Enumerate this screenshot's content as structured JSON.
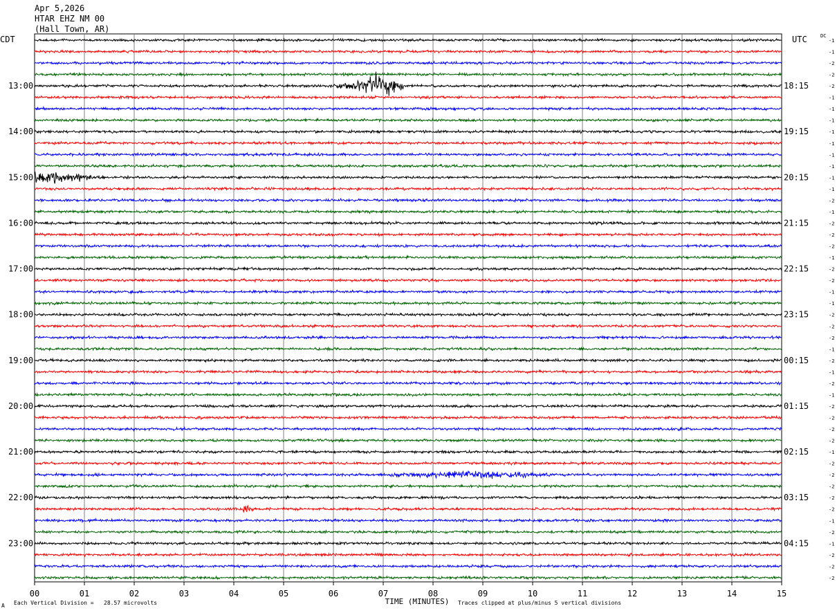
{
  "header": {
    "date": "Apr 5,2026",
    "station": "HTAR EHZ NM 00",
    "location": "(Hall Town, AR)"
  },
  "left_timezone": "CDT",
  "right_timezone": "UTC",
  "dc_label": "DC",
  "footer": {
    "scale_note": "Each Vertical Division =   28.57 microvolts",
    "clip_note": "Traces clipped at plus/minus 5 vertical divisions",
    "corner_mark": "A"
  },
  "colors": {
    "trace_cycle": [
      "#000000",
      "#ff0000",
      "#0000ff",
      "#006400"
    ],
    "grid": "#808080",
    "background": "#ffffff"
  },
  "chart_data": {
    "type": "line",
    "xlabel": "TIME (MINUTES)",
    "xlim": [
      0,
      15
    ],
    "x_ticks": [
      "00",
      "01",
      "02",
      "03",
      "04",
      "05",
      "06",
      "07",
      "08",
      "09",
      "10",
      "11",
      "12",
      "13",
      "14",
      "15"
    ],
    "trace_count": 48,
    "minutes_per_trace": 15,
    "left_hour_labels": [
      {
        "row": 4,
        "text": "13:00"
      },
      {
        "row": 8,
        "text": "14:00"
      },
      {
        "row": 12,
        "text": "15:00"
      },
      {
        "row": 16,
        "text": "16:00"
      },
      {
        "row": 20,
        "text": "17:00"
      },
      {
        "row": 24,
        "text": "18:00"
      },
      {
        "row": 28,
        "text": "19:00"
      },
      {
        "row": 32,
        "text": "20:00"
      },
      {
        "row": 36,
        "text": "21:00"
      },
      {
        "row": 40,
        "text": "22:00"
      },
      {
        "row": 44,
        "text": "23:00"
      }
    ],
    "right_hour_labels": [
      {
        "row": 4,
        "text": "18:15"
      },
      {
        "row": 8,
        "text": "19:15"
      },
      {
        "row": 12,
        "text": "20:15"
      },
      {
        "row": 16,
        "text": "21:15"
      },
      {
        "row": 20,
        "text": "22:15"
      },
      {
        "row": 24,
        "text": "23:15"
      },
      {
        "row": 28,
        "text": "00:15"
      },
      {
        "row": 32,
        "text": "01:15"
      },
      {
        "row": 36,
        "text": "02:15"
      },
      {
        "row": 40,
        "text": "03:15"
      },
      {
        "row": 44,
        "text": "04:15"
      }
    ],
    "dc_offsets": [
      "-1",
      "-1",
      "-2",
      "-2",
      "-2",
      "-1",
      "-1",
      "-1",
      "-1",
      "-1",
      "-1",
      "-1",
      "-1",
      "-1",
      "-2",
      "-1",
      "-2",
      "-2",
      "-2",
      "-1",
      "-2",
      "-2",
      "-1",
      "-1",
      "-2",
      "-2",
      "-2",
      "-1",
      "-2",
      "-1",
      "-2",
      "-1",
      "-2",
      "-2",
      "-2",
      "-2",
      "-1",
      "-2",
      "-2",
      "-2",
      "-2",
      "-2",
      "-1",
      "-2",
      "-1",
      "-2",
      "-2",
      "-2"
    ],
    "events": [
      {
        "row": 4,
        "start_min": 6.0,
        "end_min": 7.4,
        "peak_min": 6.85,
        "amplitude_div": 5
      },
      {
        "row": 12,
        "start_min": 0.0,
        "end_min": 1.8,
        "peak_min": 0.3,
        "amplitude_div": 3
      },
      {
        "row": 38,
        "start_min": 6.5,
        "end_min": 10.5,
        "peak_min": 8.8,
        "amplitude_div": 1.2
      },
      {
        "row": 41,
        "start_min": 4.0,
        "end_min": 4.5,
        "peak_min": 4.2,
        "amplitude_div": 1.2
      }
    ],
    "noise_amplitude_div": 0.6
  }
}
